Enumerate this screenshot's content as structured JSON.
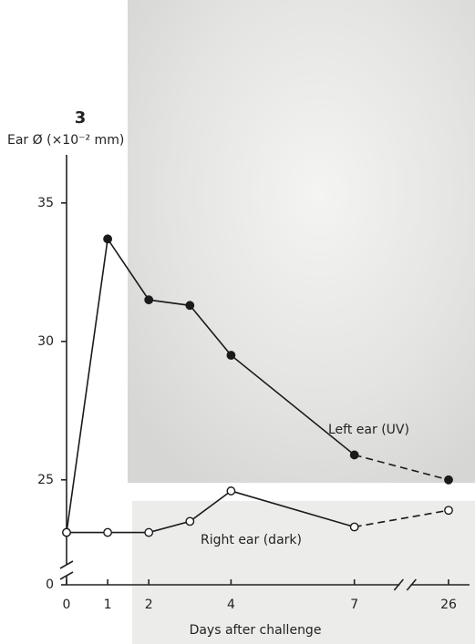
{
  "chart_data": {
    "type": "line",
    "figure_label": "3",
    "y_label": "Ear Ø  (×10⁻² mm)",
    "x_label": "Days after challenge",
    "x": [
      0,
      1,
      2,
      3,
      4,
      7,
      26
    ],
    "xticks": [
      0,
      1,
      2,
      4,
      7,
      26
    ],
    "xlim": [
      0,
      26
    ],
    "x_break": true,
    "ylim": [
      22,
      37
    ],
    "yticks": [
      0,
      25,
      30,
      35
    ],
    "y_break": true,
    "series": [
      {
        "name": "Left ear (UV)",
        "color": "#1a1a1a",
        "marker": "filled",
        "values": [
          23.1,
          33.7,
          31.5,
          31.3,
          29.5,
          25.9,
          25.0
        ]
      },
      {
        "name": "Right ear (dark)",
        "color": "#1a1a1a",
        "marker": "open",
        "values": [
          23.1,
          23.1,
          23.1,
          23.5,
          24.6,
          23.3,
          23.9
        ]
      }
    ]
  }
}
